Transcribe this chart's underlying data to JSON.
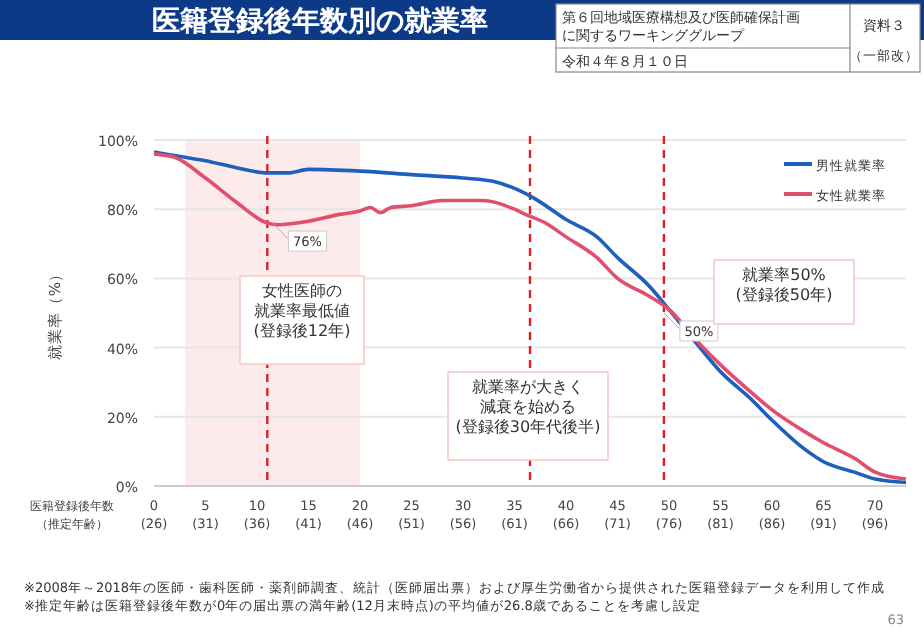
{
  "chart_data": {
    "type": "line",
    "title": "医籍登録後年数別の就業率",
    "xlabel": "医籍登録後年数",
    "x2label": "（推定年齢）",
    "ylabel": "就業率（%）",
    "xlim": [
      0,
      73
    ],
    "ylim": [
      0,
      100
    ],
    "x2lim": [
      26,
      99
    ],
    "xticks": [
      0,
      5,
      10,
      15,
      20,
      25,
      30,
      35,
      40,
      45,
      50,
      55,
      60,
      65,
      70
    ],
    "x2ticks": [
      {
        "value": 26,
        "label": "(26)"
      },
      {
        "value": 31,
        "label": "(31)"
      },
      {
        "value": 36,
        "label": "(36)"
      },
      {
        "value": 41,
        "label": "(41)"
      },
      {
        "value": 46,
        "label": "(46)"
      },
      {
        "value": 51,
        "label": "(51)"
      },
      {
        "value": 56,
        "label": "(56)"
      },
      {
        "value": 61,
        "label": "(61)"
      },
      {
        "value": 66,
        "label": "(66)"
      },
      {
        "value": 71,
        "label": "(71)"
      },
      {
        "value": 76,
        "label": "(76)"
      },
      {
        "value": 81,
        "label": "(81)"
      },
      {
        "value": 86,
        "label": "(86)"
      },
      {
        "value": 91,
        "label": "(91)"
      },
      {
        "value": 96,
        "label": "(96)"
      }
    ],
    "yticks": [
      {
        "value": 0,
        "label": "0%"
      },
      {
        "value": 20,
        "label": "20%"
      },
      {
        "value": 40,
        "label": "40%"
      },
      {
        "value": 60,
        "label": "60%"
      },
      {
        "value": 80,
        "label": "80%"
      },
      {
        "value": 100,
        "label": "100%"
      }
    ],
    "grid": "y",
    "legend": "top right",
    "marker": "none",
    "line_style": "solid",
    "series": [
      {
        "name": "男性就業率",
        "color": "#1f5fbf",
        "x": [
          0,
          3,
          5,
          8,
          11,
          13,
          15,
          20,
          25,
          30,
          33,
          35,
          37,
          40,
          43,
          45,
          48,
          50,
          53,
          55,
          58,
          60,
          63,
          65,
          68,
          70,
          73
        ],
        "values": [
          96.5,
          95,
          94,
          92,
          90.5,
          90.5,
          91.5,
          91,
          90,
          89,
          88,
          86,
          83,
          77,
          72,
          66,
          58,
          51,
          40,
          33,
          25,
          19,
          11,
          7,
          4,
          2,
          1
        ]
      },
      {
        "name": "女性就業率",
        "color": "#e0506e",
        "x": [
          0,
          2,
          5,
          8,
          11,
          12,
          15,
          18,
          20,
          21,
          22,
          23,
          25,
          28,
          32,
          35,
          36,
          38,
          40,
          43,
          45,
          48,
          50,
          53,
          55,
          58,
          60,
          63,
          65,
          68,
          70,
          73
        ],
        "values": [
          96,
          95,
          89,
          82,
          76,
          75.5,
          76.5,
          78.5,
          79.5,
          80.5,
          79,
          80.5,
          81,
          82.5,
          82.5,
          80,
          78.6,
          76,
          72,
          66,
          60,
          55,
          51,
          41,
          35,
          27,
          22,
          16,
          12.5,
          8,
          4,
          2
        ]
      }
    ],
    "bands": [
      {
        "axis": "x",
        "from": 3,
        "to": 20,
        "color": "#fdeaea"
      }
    ],
    "ref_lines": [
      {
        "axis": "x",
        "value": 11,
        "color": "#e02020",
        "line_style": "dashed"
      },
      {
        "axis": "x",
        "value": 36.5,
        "color": "#e02020",
        "line_style": "dashed"
      },
      {
        "axis": "x",
        "value": 49.5,
        "color": "#e02020",
        "line_style": "dashed"
      }
    ],
    "annotations": [
      {
        "text": "76%",
        "x": 11.5,
        "y": 76
      },
      {
        "text": "50%",
        "x": 49.5,
        "y": 50
      },
      "女性医師の就業率最低値(登録後12年)",
      "就業率が大きく減衰を始める(登録後30年代後半)",
      "就業率50%(登録後50年)",
      "※2008年～2018年の医師・歯科医師・薬剤師調査、統計（医師届出票）および厚生労働省から提供された医籍登録データを利用して作成",
      "※推定年齢は医籍登録後年数が0年の届出票の満年齢(12月末時点)の平均値が26.8歳であることを考慮し設定",
      "63",
      "第６回地域医療構想及び医師確保計画に関するワーキンググループ",
      "令和４年８月１０日",
      "資料３",
      "（一部改）"
    ]
  }
}
